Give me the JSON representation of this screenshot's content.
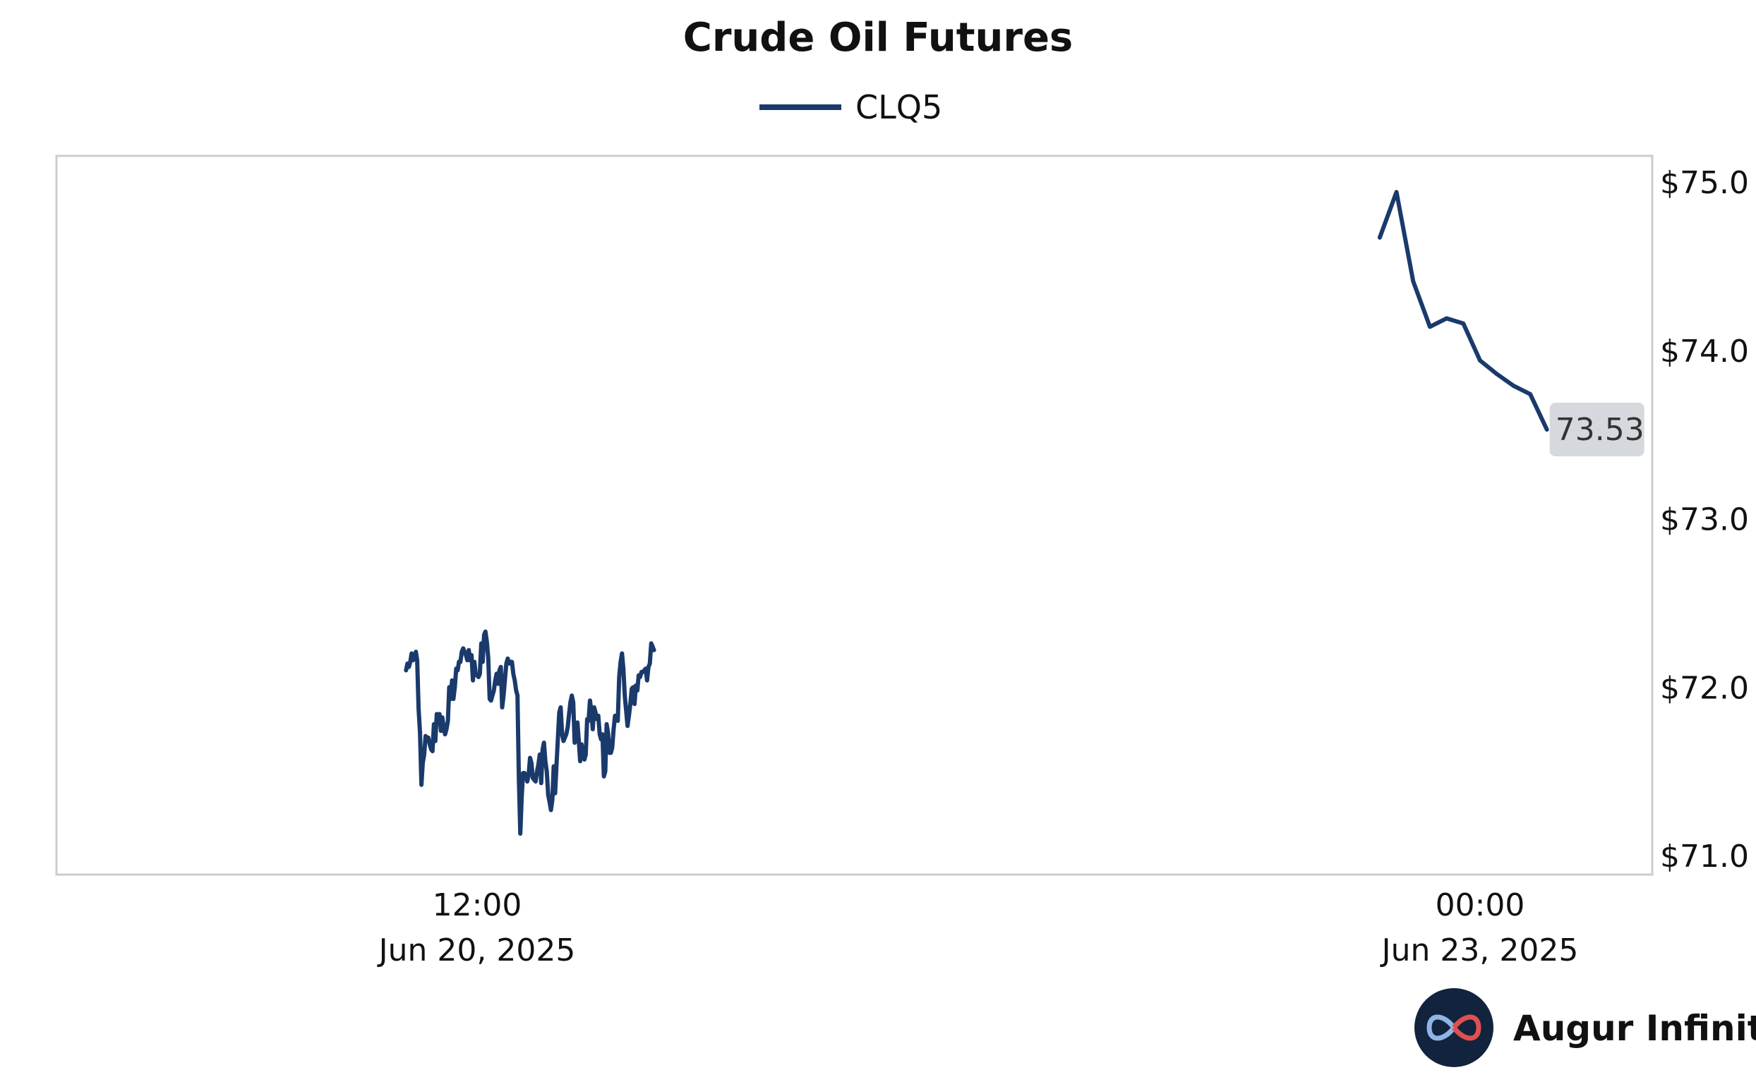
{
  "chart_data": {
    "type": "line",
    "title": "Crude Oil Futures",
    "xlabel": "",
    "ylabel": "",
    "y_tick_labels": [
      "$71.0",
      "$72.0",
      "$73.0",
      "$74.0",
      "$75.0"
    ],
    "y_tick_values": [
      71.0,
      72.0,
      73.0,
      74.0,
      75.0
    ],
    "ylim": [
      70.9,
      75.15
    ],
    "x_ticks": [
      {
        "time": "2025-06-20T12:00",
        "line1": "12:00",
        "line2": "Jun 20, 2025"
      },
      {
        "time": "2025-06-23T00:00",
        "line1": "00:00",
        "line2": "Jun 23, 2025"
      }
    ],
    "last_value_label": "73.53",
    "grid": false,
    "legend": "top-center",
    "colors": {
      "series": "#1a3a6b",
      "frame": "#cccccc",
      "label_bg": "#d5d9de"
    },
    "series": [
      {
        "name": "CLQ5",
        "segments": [
          {
            "start": "2025-06-20T07:45",
            "interval_minutes": 5,
            "values": [
              72.1,
              72.14,
              72.12,
              72.15,
              72.2,
              72.16,
              72.17,
              72.21,
              72.16,
              71.87,
              71.73,
              71.42,
              71.55,
              71.6,
              71.71,
              71.7,
              71.7,
              71.66,
              71.63,
              71.62,
              71.78,
              71.68,
              71.84,
              71.8,
              71.84,
              71.74,
              71.82,
              71.76,
              71.72,
              71.75,
              71.8,
              72.0,
              71.93,
              72.04,
              71.93,
              72.0,
              72.11,
              72.1,
              72.15,
              72.15,
              72.21,
              72.23,
              72.21,
              72.19,
              72.16,
              72.22,
              72.16,
              72.19,
              72.04,
              72.15,
              72.08,
              72.07,
              72.06,
              72.08,
              72.26,
              72.15,
              72.31,
              72.33,
              72.27,
              72.17,
              71.93,
              71.92,
              71.95,
              71.98,
              72.04,
              72.08,
              72.02,
              72.1,
              72.12,
              71.88,
              71.95,
              72.05,
              72.14,
              72.17,
              72.14,
              72.15,
              72.15,
              72.08,
              72.04,
              71.98,
              71.95,
              71.45,
              71.13,
              71.35,
              71.49,
              71.49,
              71.48,
              71.44,
              71.48,
              71.58,
              71.55,
              71.46,
              71.45,
              71.44,
              71.5,
              71.54,
              71.6,
              71.43,
              71.63,
              71.67,
              71.56,
              71.5,
              71.36,
              71.32,
              71.27,
              71.33,
              71.53,
              71.37,
              71.54,
              71.7,
              71.85,
              71.88,
              71.72,
              71.68,
              71.7,
              71.72,
              71.76,
              71.84,
              71.91,
              71.95,
              71.91,
              71.67,
              71.7,
              71.79,
              71.68,
              71.56,
              71.66,
              71.61,
              71.57,
              71.6,
              71.81,
              71.8,
              71.92,
              71.86,
              71.75,
              71.88,
              71.85,
              71.81,
              71.83,
              71.72,
              71.69,
              71.72,
              71.47,
              71.5,
              71.78,
              71.73,
              71.61,
              71.61,
              71.64,
              71.75,
              71.83,
              71.81,
              71.8,
              72.06,
              72.15,
              72.2,
              72.11,
              71.95,
              71.86,
              71.77,
              71.83,
              71.9,
              71.99,
              72.0,
              71.9,
              72.01,
              71.98,
              72.07,
              72.06,
              72.09,
              72.09,
              72.1,
              72.11,
              72.04,
              72.12,
              72.14,
              72.26,
              72.24,
              72.22
            ]
          },
          {
            "start": "2025-06-22T18:00",
            "interval_minutes": 60,
            "values": [
              74.67,
              74.94,
              74.41,
              74.14,
              74.19,
              74.16,
              73.94,
              73.86,
              73.79,
              73.74,
              73.53
            ]
          }
        ]
      }
    ]
  },
  "brand": {
    "name": "Augur Infinity",
    "logo_icon": "infinity-logo-icon"
  }
}
